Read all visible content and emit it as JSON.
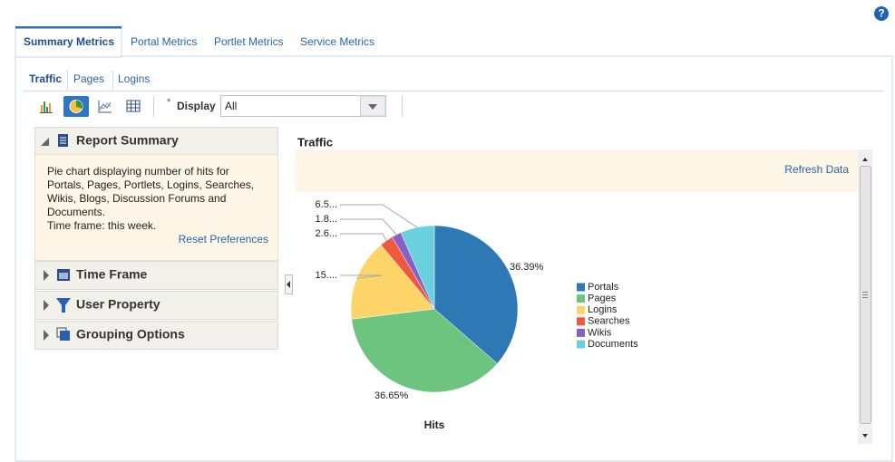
{
  "help_icon": "?",
  "tabs": [
    "Summary Metrics",
    "Portal Metrics",
    "Portlet Metrics",
    "Service Metrics"
  ],
  "subtabs": [
    "Traffic",
    "Pages",
    "Logins"
  ],
  "toolbar": {
    "required_mark": "*",
    "display_label": "Display",
    "display_value": "All"
  },
  "left_panel": {
    "sections": [
      {
        "title": "Report Summary",
        "body": [
          "Pie chart displaying number of hits for",
          "Portals, Pages, Portlets, Logins, Searches,",
          "Wikis, Blogs, Discussion Forums and",
          "Documents.",
          "Time frame: this week."
        ],
        "link": "Reset Preferences"
      },
      {
        "title": "Time Frame"
      },
      {
        "title": "User Property"
      },
      {
        "title": "Grouping Options"
      }
    ]
  },
  "chart_panel": {
    "title": "Traffic",
    "link": "Refresh Data"
  },
  "chart_data": {
    "type": "pie",
    "title": "Hits",
    "categories": [
      "Portals",
      "Pages",
      "Logins",
      "Searches",
      "Wikis",
      "Documents"
    ],
    "values": [
      36.39,
      36.65,
      15.9,
      2.63,
      1.85,
      6.58
    ],
    "value_labels": [
      "36.39%",
      "36.65%",
      "15....",
      "2.6...",
      "1.8...",
      "6.5..."
    ],
    "colors": [
      "#2e78b5",
      "#6cc47f",
      "#fdd467",
      "#ee5a3d",
      "#8560c6",
      "#6ad0de"
    ]
  }
}
